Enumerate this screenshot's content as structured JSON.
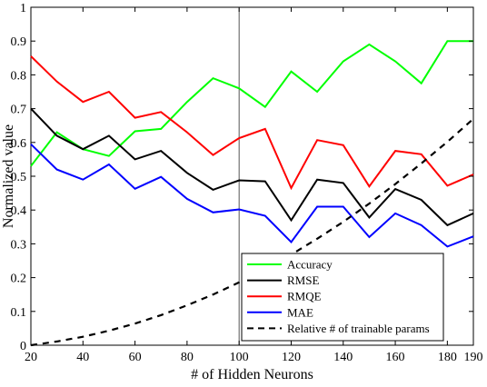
{
  "chart_data": {
    "type": "line",
    "xlabel": "# of Hidden Neurons",
    "ylabel": "Normalized value",
    "xlim": [
      20,
      190
    ],
    "ylim": [
      0,
      1
    ],
    "x_ticks": [
      20,
      40,
      60,
      80,
      100,
      120,
      140,
      160,
      180,
      190
    ],
    "y_ticks": [
      0,
      0.1,
      0.2,
      0.3,
      0.4,
      0.5,
      0.6,
      0.7,
      0.8,
      0.9,
      1
    ],
    "x_tick_labels": [
      "20",
      "40",
      "60",
      "80",
      "100",
      "120",
      "140",
      "160",
      "180",
      "190"
    ],
    "y_tick_labels": [
      "0",
      "0.1",
      "0.2",
      "0.3",
      "0.4",
      "0.5",
      "0.6",
      "0.7",
      "0.8",
      "0.9",
      "1"
    ],
    "x": [
      20,
      30,
      40,
      50,
      60,
      70,
      80,
      90,
      100,
      110,
      120,
      130,
      140,
      150,
      160,
      170,
      180,
      190
    ],
    "vertical_marker_x": 100,
    "grid": false,
    "legend_position": "bottom-right",
    "series": [
      {
        "name": "Accuracy",
        "color": "#00ff00",
        "dash": "solid",
        "values": [
          0.53,
          0.63,
          0.58,
          0.56,
          0.633,
          0.64,
          0.72,
          0.79,
          0.76,
          0.705,
          0.81,
          0.75,
          0.84,
          0.89,
          0.84,
          0.775,
          0.9,
          0.9
        ]
      },
      {
        "name": "RMSE",
        "color": "#000000",
        "dash": "solid",
        "values": [
          0.7,
          0.62,
          0.58,
          0.62,
          0.55,
          0.575,
          0.51,
          0.46,
          0.488,
          0.485,
          0.37,
          0.49,
          0.48,
          0.378,
          0.462,
          0.43,
          0.355,
          0.39
        ]
      },
      {
        "name": "RMQE",
        "color": "#ff0000",
        "dash": "solid",
        "values": [
          0.855,
          0.78,
          0.72,
          0.75,
          0.673,
          0.69,
          0.63,
          0.563,
          0.613,
          0.64,
          0.465,
          0.607,
          0.592,
          0.47,
          0.575,
          0.565,
          0.472,
          0.505
        ]
      },
      {
        "name": "MAE",
        "color": "#0000ff",
        "dash": "solid",
        "values": [
          0.595,
          0.52,
          0.49,
          0.535,
          0.463,
          0.498,
          0.433,
          0.393,
          0.402,
          0.383,
          0.305,
          0.41,
          0.41,
          0.32,
          0.39,
          0.355,
          0.292,
          0.322
        ]
      },
      {
        "name": "Relative # of trainable params",
        "color": "#000000",
        "dash": "dashed",
        "values": [
          0.0,
          0.011,
          0.025,
          0.043,
          0.064,
          0.089,
          0.118,
          0.15,
          0.186,
          0.225,
          0.268,
          0.315,
          0.365,
          0.419,
          0.477,
          0.538,
          0.602,
          0.67
        ]
      }
    ]
  }
}
